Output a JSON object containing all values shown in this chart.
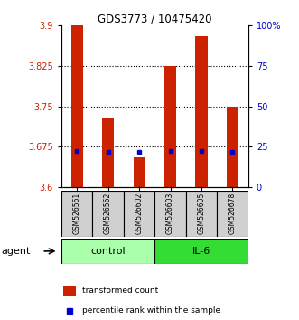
{
  "title": "GDS3773 / 10475420",
  "samples": [
    "GSM526561",
    "GSM526562",
    "GSM526602",
    "GSM526603",
    "GSM526605",
    "GSM526678"
  ],
  "red_values": [
    3.9,
    3.73,
    3.655,
    3.825,
    3.88,
    3.75
  ],
  "blue_values": [
    3.668,
    3.665,
    3.665,
    3.668,
    3.668,
    3.665
  ],
  "y_min": 3.6,
  "y_max": 3.9,
  "y_ticks_left": [
    3.6,
    3.675,
    3.75,
    3.825,
    3.9
  ],
  "y_ticks_right_vals": [
    0,
    25,
    50,
    75,
    100
  ],
  "y_ticks_right_labels": [
    "0",
    "25",
    "50",
    "75",
    "100%"
  ],
  "bar_color": "#CC2200",
  "marker_color": "#0000CC",
  "baseline": 3.6,
  "bar_width": 0.38,
  "legend_red": "transformed count",
  "legend_blue": "percentile rank within the sample",
  "agent_label": "agent",
  "grid_lines": [
    3.675,
    3.75,
    3.825
  ],
  "tick_label_color_left": "#CC2200",
  "tick_label_color_right": "#0000CC",
  "control_color": "#AAFFAA",
  "il6_color": "#33DD33",
  "sample_box_color": "#D0D0D0"
}
